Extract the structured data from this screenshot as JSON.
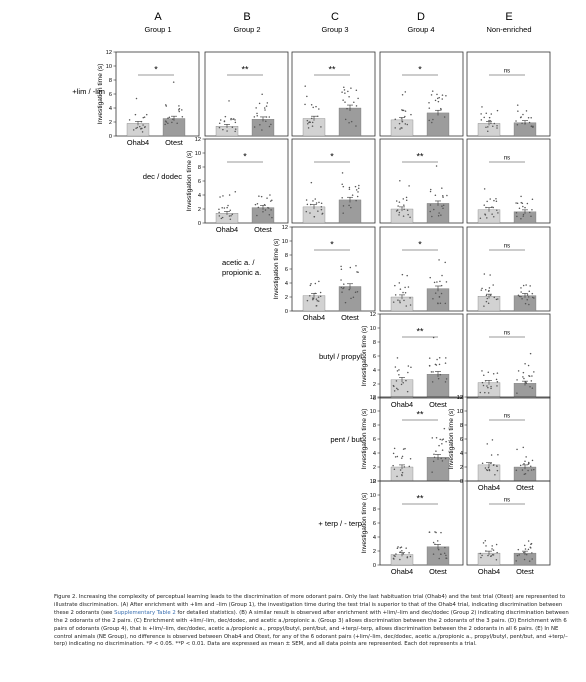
{
  "columns": [
    {
      "letter": "A",
      "group": "Group 1"
    },
    {
      "letter": "B",
      "group": "Group 2"
    },
    {
      "letter": "C",
      "group": "Group 3"
    },
    {
      "letter": "D",
      "group": "Group 4"
    },
    {
      "letter": "E",
      "group": "Non-enriched"
    }
  ],
  "row_labels": [
    [
      "+lim / -lim"
    ],
    [
      "dec / dodec"
    ],
    [
      "acetic a. /",
      "propionic a."
    ],
    [
      "butyl / propyl"
    ],
    [
      "pent / but"
    ],
    [
      "+ terp / - terp"
    ]
  ],
  "axis": {
    "ylabel": "Investigation time (s)",
    "ticks": [
      "0",
      "2",
      "4",
      "6",
      "8",
      "10",
      "12"
    ],
    "xcats": [
      "Ohab4",
      "Otest"
    ]
  },
  "chart_data": {
    "type": "bar",
    "categories": [
      "Ohab4",
      "Otest"
    ],
    "ylabel": "Investigation time (s)",
    "ylim": [
      0,
      12
    ],
    "panels": [
      {
        "row": 0,
        "col": 0,
        "values": [
          1.8,
          2.5
        ],
        "sig": "*"
      },
      {
        "row": 0,
        "col": 1,
        "values": [
          1.4,
          2.4
        ],
        "sig": "**"
      },
      {
        "row": 0,
        "col": 2,
        "values": [
          2.5,
          4.0
        ],
        "sig": "**"
      },
      {
        "row": 0,
        "col": 3,
        "values": [
          2.3,
          3.3
        ],
        "sig": "*"
      },
      {
        "row": 0,
        "col": 4,
        "values": [
          1.8,
          1.9
        ],
        "sig": "ns"
      },
      {
        "row": 1,
        "col": 1,
        "values": [
          1.4,
          2.2
        ],
        "sig": "*"
      },
      {
        "row": 1,
        "col": 2,
        "values": [
          2.3,
          3.3
        ],
        "sig": "*"
      },
      {
        "row": 1,
        "col": 3,
        "values": [
          2.0,
          2.8
        ],
        "sig": "**"
      },
      {
        "row": 1,
        "col": 4,
        "values": [
          1.9,
          1.6
        ],
        "sig": "ns"
      },
      {
        "row": 2,
        "col": 2,
        "values": [
          2.2,
          3.5
        ],
        "sig": "*"
      },
      {
        "row": 2,
        "col": 3,
        "values": [
          2.0,
          3.2
        ],
        "sig": "*"
      },
      {
        "row": 2,
        "col": 4,
        "values": [
          2.1,
          2.2
        ],
        "sig": "ns"
      },
      {
        "row": 3,
        "col": 3,
        "values": [
          2.6,
          3.4
        ],
        "sig": "**"
      },
      {
        "row": 3,
        "col": 4,
        "values": [
          2.2,
          2.1
        ],
        "sig": "ns"
      },
      {
        "row": 4,
        "col": 3,
        "values": [
          2.0,
          3.4
        ],
        "sig": "**"
      },
      {
        "row": 4,
        "col": 4,
        "values": [
          2.3,
          2.0
        ],
        "sig": "ns"
      },
      {
        "row": 5,
        "col": 3,
        "values": [
          1.5,
          2.6
        ],
        "sig": "**"
      },
      {
        "row": 5,
        "col": 4,
        "values": [
          1.7,
          1.7
        ],
        "sig": "ns"
      }
    ]
  },
  "colors": {
    "bar_hab": "#d2d2d2",
    "bar_test": "#9c9c9c",
    "frame": "#333333",
    "dot": "#555555"
  },
  "caption": {
    "p1": "Figure 2. Increasing the complexity of perceptual learning leads to the discrimination of more odorant pairs. Only the last habituation trial (Ohab4) and the test trial (Otest) are represented to illustrate discrimination. (A) After enrichment with +lim and –lim (Group 1), the investigation time during the test trial is superior to that of the Ohab4 trial, indicating discrimination between these 2 odorants (see ",
    "link": "Supplementary Table 2",
    "p2": " for detailed statistics). (B) A similar result is observed after enrichment with +lim/–lim and dec/dodec (Group 2) indicating discrimination between the 2 odorants of the 2 pairs. (C) Enrichment with +lim/–lim, dec/dodec, and acetic a./propionic a. (Group 3) allows discrimination between the 2 odorants of the 3 pairs. (D) Enrichment with 6 pairs of odorants (Group 4), that is +lim/–lim, dec/dodec, acetic a./propionic a., propyl/butyl, pent/but, and +terp/–terp, allows discrimination between the 2 odorants in all 6 pairs. (E) In NE control animals (NE Group), no difference is observed between Ohab4 and Otest, for any of the 6 odorant pairs (+lim/–lim, dec/dodec, acetic a./propionic a., propyl/butyl, pent/but, and +terp/–terp) indicating no discrimination. *P < 0.05. **P < 0.01. Data are expressed as mean ± SEM, and all data points are represented. Each dot represents a trial."
  }
}
